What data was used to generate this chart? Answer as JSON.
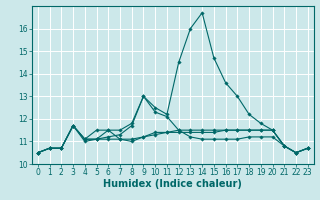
{
  "xlabel": "Humidex (Indice chaleur)",
  "ylabel": "",
  "background_color": "#cce8ea",
  "grid_color": "#ffffff",
  "line_color": "#006868",
  "x_values": [
    0,
    1,
    2,
    3,
    4,
    5,
    6,
    7,
    8,
    9,
    10,
    11,
    12,
    13,
    14,
    15,
    16,
    17,
    18,
    19,
    20,
    21,
    22,
    23
  ],
  "series": [
    [
      10.5,
      10.7,
      10.7,
      11.7,
      11.0,
      11.1,
      11.2,
      11.3,
      11.7,
      13.0,
      12.3,
      12.1,
      11.5,
      11.2,
      11.1,
      11.1,
      11.1,
      11.1,
      11.2,
      11.2,
      11.2,
      10.8,
      10.5,
      10.7
    ],
    [
      10.5,
      10.7,
      10.7,
      11.7,
      11.1,
      11.5,
      11.5,
      11.1,
      11.0,
      11.2,
      11.4,
      11.4,
      11.4,
      11.4,
      11.4,
      11.4,
      11.5,
      11.5,
      11.5,
      11.5,
      11.5,
      10.8,
      10.5,
      10.7
    ],
    [
      10.5,
      10.7,
      10.7,
      11.7,
      11.1,
      11.1,
      11.1,
      11.1,
      11.1,
      11.2,
      11.3,
      11.4,
      11.5,
      11.5,
      11.5,
      11.5,
      11.5,
      11.5,
      11.5,
      11.5,
      11.5,
      10.8,
      10.5,
      10.7
    ],
    [
      10.5,
      10.7,
      10.7,
      11.7,
      11.1,
      11.1,
      11.5,
      11.5,
      11.8,
      13.0,
      12.5,
      12.2,
      14.5,
      16.0,
      16.7,
      14.7,
      13.6,
      13.0,
      12.2,
      11.8,
      11.5,
      10.8,
      10.5,
      10.7
    ]
  ],
  "ylim": [
    10,
    17
  ],
  "xlim_min": -0.5,
  "xlim_max": 23.5,
  "yticks": [
    10,
    11,
    12,
    13,
    14,
    15,
    16
  ],
  "xticks": [
    0,
    1,
    2,
    3,
    4,
    5,
    6,
    7,
    8,
    9,
    10,
    11,
    12,
    13,
    14,
    15,
    16,
    17,
    18,
    19,
    20,
    21,
    22,
    23
  ],
  "tick_fontsize": 5.5,
  "xlabel_fontsize": 7.0,
  "marker": "D",
  "marker_size": 1.8,
  "linewidth": 0.8
}
